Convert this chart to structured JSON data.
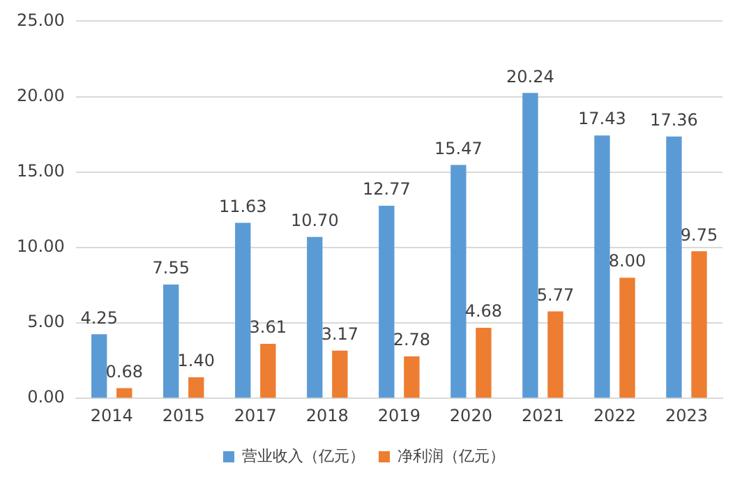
{
  "chart_data": {
    "type": "bar",
    "categories": [
      "2014",
      "2015",
      "2017",
      "2018",
      "2019",
      "2020",
      "2021",
      "2022",
      "2023"
    ],
    "series": [
      {
        "name": "营业收入（亿元）",
        "color": "#5b9bd5",
        "values": [
          4.25,
          7.55,
          11.63,
          10.7,
          12.77,
          15.47,
          20.24,
          17.43,
          17.36
        ],
        "value_labels": [
          "4.25",
          "7.55",
          "11.63",
          "10.70",
          "12.77",
          "15.47",
          "20.24",
          "17.43",
          "17.36"
        ]
      },
      {
        "name": "净利润（亿元）",
        "color": "#ed7d31",
        "values": [
          0.68,
          1.4,
          3.61,
          3.17,
          2.78,
          4.68,
          5.77,
          8.0,
          9.75
        ],
        "value_labels": [
          "0.68",
          "1.40",
          "3.61",
          "3.17",
          "2.78",
          "4.68",
          "5.77",
          "8.00",
          "9.75"
        ]
      }
    ],
    "ylim": [
      0,
      25
    ],
    "yticks": [
      {
        "value": 0,
        "label": "0.00"
      },
      {
        "value": 5,
        "label": "5.00"
      },
      {
        "value": 10,
        "label": "10.00"
      },
      {
        "value": 15,
        "label": "15.00"
      },
      {
        "value": 20,
        "label": "20.00"
      },
      {
        "value": 25,
        "label": "25.00"
      }
    ],
    "grid": "y",
    "legend": "bottom"
  }
}
